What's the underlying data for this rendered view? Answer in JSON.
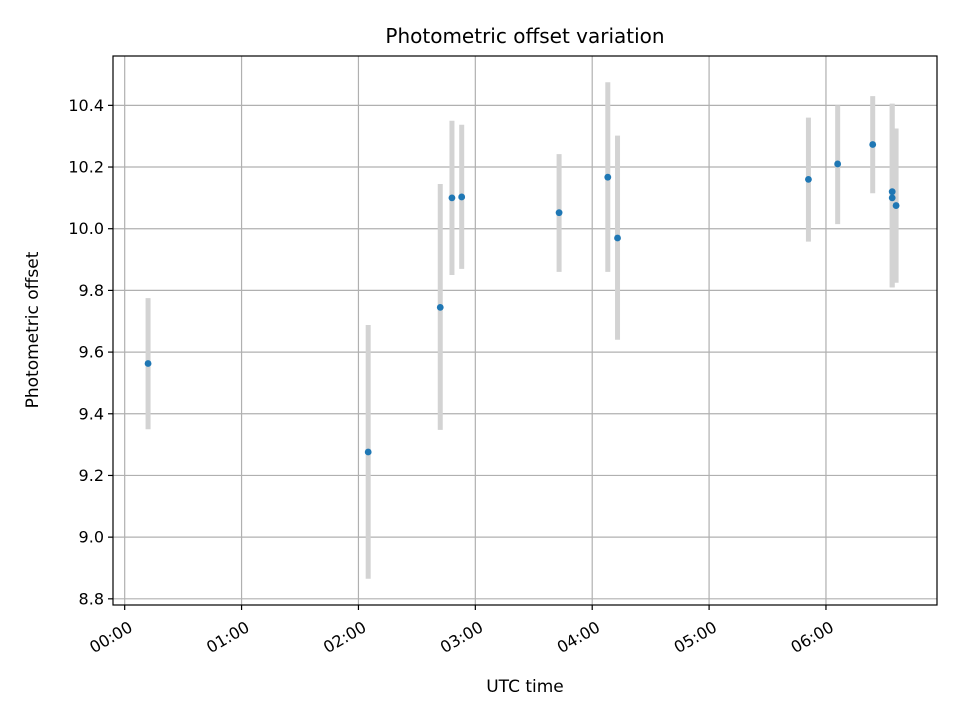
{
  "chart_data": {
    "type": "scatter",
    "title": "Photometric offset variation",
    "xlabel": "UTC time",
    "ylabel": "Photometric offset",
    "x_unit": "UTC hh:mm",
    "xlim": [
      "-00:06",
      "06:57"
    ],
    "ylim": [
      8.78,
      10.56
    ],
    "x_ticks": [
      "00:00",
      "01:00",
      "02:00",
      "03:00",
      "04:00",
      "05:00",
      "06:00"
    ],
    "y_ticks": [
      "8.8",
      "9.0",
      "9.2",
      "9.4",
      "9.6",
      "9.8",
      "10.0",
      "10.2",
      "10.4"
    ],
    "grid": true,
    "legend": "none",
    "colors": {
      "point": "#1f77b4",
      "errorbar": "#d3d3d3",
      "grid": "#b0b0b0"
    },
    "points": [
      {
        "x": "00:12",
        "y": 9.563,
        "ymin": 9.35,
        "ymax": 9.775
      },
      {
        "x": "02:05",
        "y": 9.276,
        "ymin": 8.865,
        "ymax": 9.688
      },
      {
        "x": "02:42",
        "y": 9.745,
        "ymin": 9.348,
        "ymax": 10.145
      },
      {
        "x": "02:48",
        "y": 10.1,
        "ymin": 9.85,
        "ymax": 10.35
      },
      {
        "x": "02:53",
        "y": 10.103,
        "ymin": 9.87,
        "ymax": 10.337
      },
      {
        "x": "03:43",
        "y": 10.052,
        "ymin": 9.86,
        "ymax": 10.242
      },
      {
        "x": "04:08",
        "y": 10.167,
        "ymin": 9.86,
        "ymax": 10.475
      },
      {
        "x": "04:13",
        "y": 9.97,
        "ymin": 9.64,
        "ymax": 10.302
      },
      {
        "x": "05:51",
        "y": 10.16,
        "ymin": 9.958,
        "ymax": 10.36
      },
      {
        "x": "06:06",
        "y": 10.21,
        "ymin": 10.015,
        "ymax": 10.4
      },
      {
        "x": "06:24",
        "y": 10.273,
        "ymin": 10.115,
        "ymax": 10.43
      },
      {
        "x": "06:34",
        "y": 10.1,
        "ymin": 9.81,
        "ymax": 10.405
      },
      {
        "x": "06:34",
        "y": 10.12,
        "ymin": 9.81,
        "ymax": 10.405
      },
      {
        "x": "06:36",
        "y": 10.075,
        "ymin": 9.825,
        "ymax": 10.325
      }
    ]
  }
}
